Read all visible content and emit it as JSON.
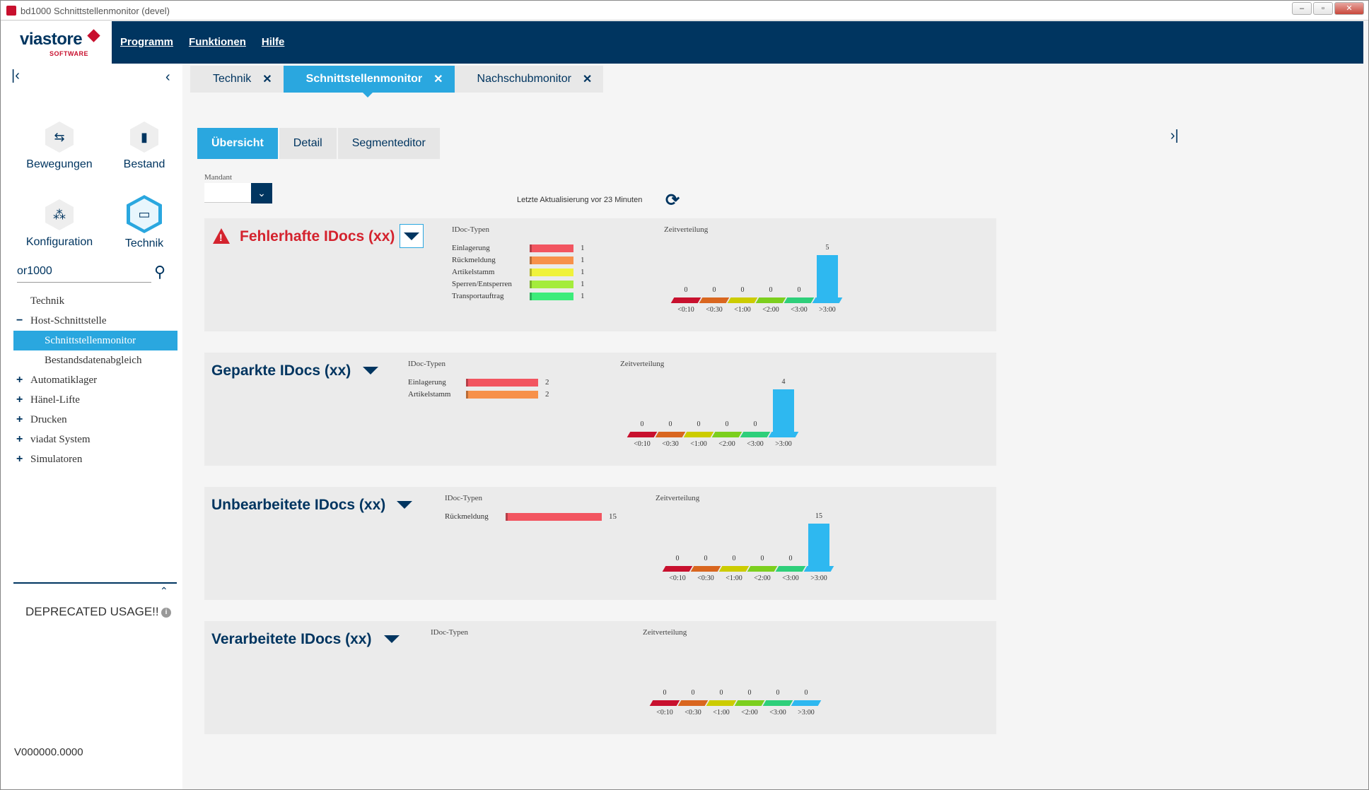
{
  "window": {
    "title": "bd1000 Schnittstellenmonitor (devel)",
    "min": "–",
    "max": "▫",
    "close": "✕"
  },
  "header": {
    "logo": "viastore",
    "logo_sub": "SOFTWARE",
    "menu": [
      "Programm",
      "Funktionen",
      "Hilfe"
    ]
  },
  "sidebar": {
    "tiles": [
      {
        "label": "Bewegungen",
        "icon": "arrows-swap-icon",
        "glyph": "⇆"
      },
      {
        "label": "Bestand",
        "icon": "bar-chart-icon",
        "glyph": "▮"
      },
      {
        "label": "Konfiguration",
        "icon": "cubes-icon",
        "glyph": "⁂"
      },
      {
        "label": "Technik",
        "icon": "monitor-icon",
        "glyph": "▭"
      }
    ],
    "search": {
      "value": "or1000"
    },
    "tree": [
      {
        "label": "Technik",
        "toggle": "",
        "indent": 0
      },
      {
        "label": "Host-Schnittstelle",
        "toggle": "−",
        "indent": 0
      },
      {
        "label": "Schnittstellenmonitor",
        "toggle": "",
        "indent": 1,
        "selected": true
      },
      {
        "label": "Bestandsdatenabgleich",
        "toggle": "",
        "indent": 1
      },
      {
        "label": "Automatiklager",
        "toggle": "+",
        "indent": 0
      },
      {
        "label": "Hänel-Lifte",
        "toggle": "+",
        "indent": 0
      },
      {
        "label": "Drucken",
        "toggle": "+",
        "indent": 0
      },
      {
        "label": "viadat System",
        "toggle": "+",
        "indent": 0
      },
      {
        "label": "Simulatoren",
        "toggle": "+",
        "indent": 0
      }
    ],
    "deprecated": "DEPRECATED USAGE!!",
    "version": "V000000.0000"
  },
  "tabs": [
    {
      "label": "Technik",
      "close": "✕"
    },
    {
      "label": "Schnittstellenmonitor",
      "close": "✕",
      "active": true
    },
    {
      "label": "Nachschubmonitor",
      "close": "✕"
    }
  ],
  "subtabs": [
    {
      "label": "Übersicht",
      "active": true
    },
    {
      "label": "Detail"
    },
    {
      "label": "Segmenteditor"
    }
  ],
  "mandant_label": "Mandant",
  "update_text": "Letzte Aktualisierung vor 23 Minuten",
  "time_labels": [
    "<0:10",
    "<0:30",
    "<1:00",
    "<2:00",
    "<3:00",
    ">3:00"
  ],
  "time_colors": [
    "#c8102e",
    "#d9661f",
    "#cccc00",
    "#7ccf1e",
    "#2ecf7a",
    "#2eb8f0"
  ],
  "panels": [
    {
      "title": "Fehlerhafte IDocs  (xx)",
      "error": true,
      "idoc_label": "IDoc-Typen",
      "zeit_label": "Zeitverteilung",
      "types": [
        {
          "name": "Einlagerung",
          "value": 1,
          "color": "#f25560"
        },
        {
          "name": "Rückmeldung",
          "value": 1,
          "color": "#f7914a"
        },
        {
          "name": "Artikelstamm",
          "value": 1,
          "color": "#f0f23c"
        },
        {
          "name": "Sperren/Entsperren",
          "value": 1,
          "color": "#a4ec3c"
        },
        {
          "name": "Transportauftrag",
          "value": 1,
          "color": "#3cec7a"
        }
      ],
      "time_values": [
        0,
        0,
        0,
        0,
        0,
        5
      ]
    },
    {
      "title": "Geparkte IDocs  (xx)",
      "error": false,
      "idoc_label": "IDoc-Typen",
      "zeit_label": "Zeitverteilung",
      "types": [
        {
          "name": "Einlagerung",
          "value": 2,
          "color": "#f25560"
        },
        {
          "name": "Artikelstamm",
          "value": 2,
          "color": "#f7914a"
        }
      ],
      "time_values": [
        0,
        0,
        0,
        0,
        0,
        4
      ]
    },
    {
      "title": "Unbearbeitete IDocs  (xx)",
      "error": false,
      "idoc_label": "IDoc-Typen",
      "zeit_label": "Zeitverteilung",
      "types": [
        {
          "name": "Rückmeldung",
          "value": 15,
          "color": "#f25560"
        }
      ],
      "time_values": [
        0,
        0,
        0,
        0,
        0,
        15
      ]
    },
    {
      "title": "Verarbeitete IDocs  (xx)",
      "error": false,
      "idoc_label": "IDoc-Typen",
      "zeit_label": "Zeitverteilung",
      "types": [],
      "time_values": [
        0,
        0,
        0,
        0,
        0,
        0
      ]
    }
  ]
}
